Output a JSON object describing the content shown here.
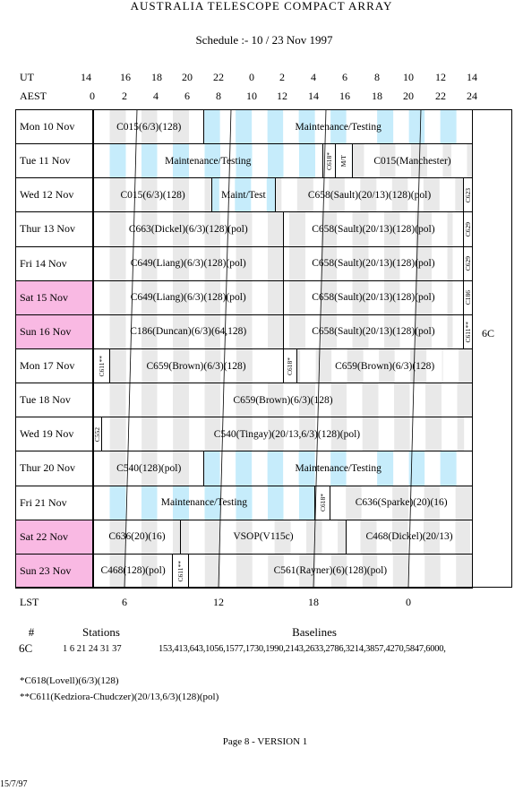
{
  "header": {
    "title": "AUSTRALIA TELESCOPE COMPACT ARRAY",
    "subtitle": "Schedule :- 10 / 23 Nov 1997"
  },
  "time_axis": {
    "ut_label": "UT",
    "ut": [
      "14",
      "16",
      "18",
      "20",
      "22",
      "0",
      "2",
      "4",
      "6",
      "8",
      "10",
      "12",
      "14"
    ],
    "aest_label": "AEST",
    "aest": [
      "0",
      "2",
      "4",
      "6",
      "8",
      "10",
      "12",
      "14",
      "16",
      "18",
      "20",
      "22",
      "24"
    ],
    "lst_label": "LST",
    "lst": [
      "6",
      "12",
      "18",
      "0"
    ]
  },
  "configuration": "6C",
  "rows": [
    {
      "day": "Mon 10 Nov",
      "blocks": [
        "C015(6/3)(128)",
        "Maintenance/Testing"
      ]
    },
    {
      "day": "Tue 11 Nov",
      "blocks": [
        "Maintenance/Testing",
        "C618*",
        "M/T",
        "C015(Manchester)"
      ]
    },
    {
      "day": "Wed 12 Nov",
      "blocks": [
        "C015(6/3)(128)",
        "Maint/Test",
        "C658(Sault)(20/13)(128)(pol)",
        "C623"
      ]
    },
    {
      "day": "Thur 13 Nov",
      "blocks": [
        "C663(Dickel)(6/3)(128)(pol)",
        "C658(Sault)(20/13)(128)(pol)",
        "C629"
      ]
    },
    {
      "day": "Fri 14 Nov",
      "blocks": [
        "C649(Liang)(6/3)(128)(pol)",
        "C658(Sault)(20/13)(128)(pol)",
        "C629"
      ]
    },
    {
      "day": "Sat 15 Nov",
      "blocks": [
        "C649(Liang)(6/3)(128)(pol)",
        "C658(Sault)(20/13)(128)(pol)",
        "C186"
      ]
    },
    {
      "day": "Sun 16 Nov",
      "blocks": [
        "C186(Duncan)(6/3)(64,128)",
        "C658(Sault)(20/13)(128)(pol)",
        "C611**"
      ]
    },
    {
      "day": "Mon 17 Nov",
      "blocks": [
        "C611**",
        "C659(Brown)(6/3)(128)",
        "C618*",
        "C659(Brown)(6/3)(128)"
      ]
    },
    {
      "day": "Tue 18 Nov",
      "blocks": [
        "C659(Brown)(6/3)(128)"
      ]
    },
    {
      "day": "Wed 19 Nov",
      "blocks": [
        "C552",
        "C540(Tingay)(20/13,6/3)(128)(pol)"
      ]
    },
    {
      "day": "Thur 20 Nov",
      "blocks": [
        "C540(128)(pol)",
        "Maintenance/Testing"
      ]
    },
    {
      "day": "Fri 21 Nov",
      "blocks": [
        "Maintenance/Testing",
        "C618*",
        "C636(Sparke)(20)(16)"
      ]
    },
    {
      "day": "Sat 22 Nov",
      "blocks": [
        "C636(20)(16)",
        "VSOP(V115c)",
        "C468(Dickel)(20/13)"
      ]
    },
    {
      "day": "Sun 23 Nov",
      "blocks": [
        "C468(128)(pol)",
        "C611**",
        "C561(Rayner)(6)(128)(pol)"
      ]
    }
  ],
  "stations_table": {
    "headers": [
      "#",
      "Stations",
      "Baselines"
    ],
    "row": [
      "6C",
      "1 6 21 24 31 37",
      "153,413,643,1056,1577,1730,1990,2143,2633,2786,3214,3857,4270,5847,6000,"
    ]
  },
  "notes": [
    "*C618(Lovell)(6/3)(128)",
    "**C611(Kedziora-Chudczer)(20/13,6/3)(128)(pol)"
  ],
  "footer": {
    "page": "Page 8 - VERSION 1",
    "date": "15/7/97"
  }
}
